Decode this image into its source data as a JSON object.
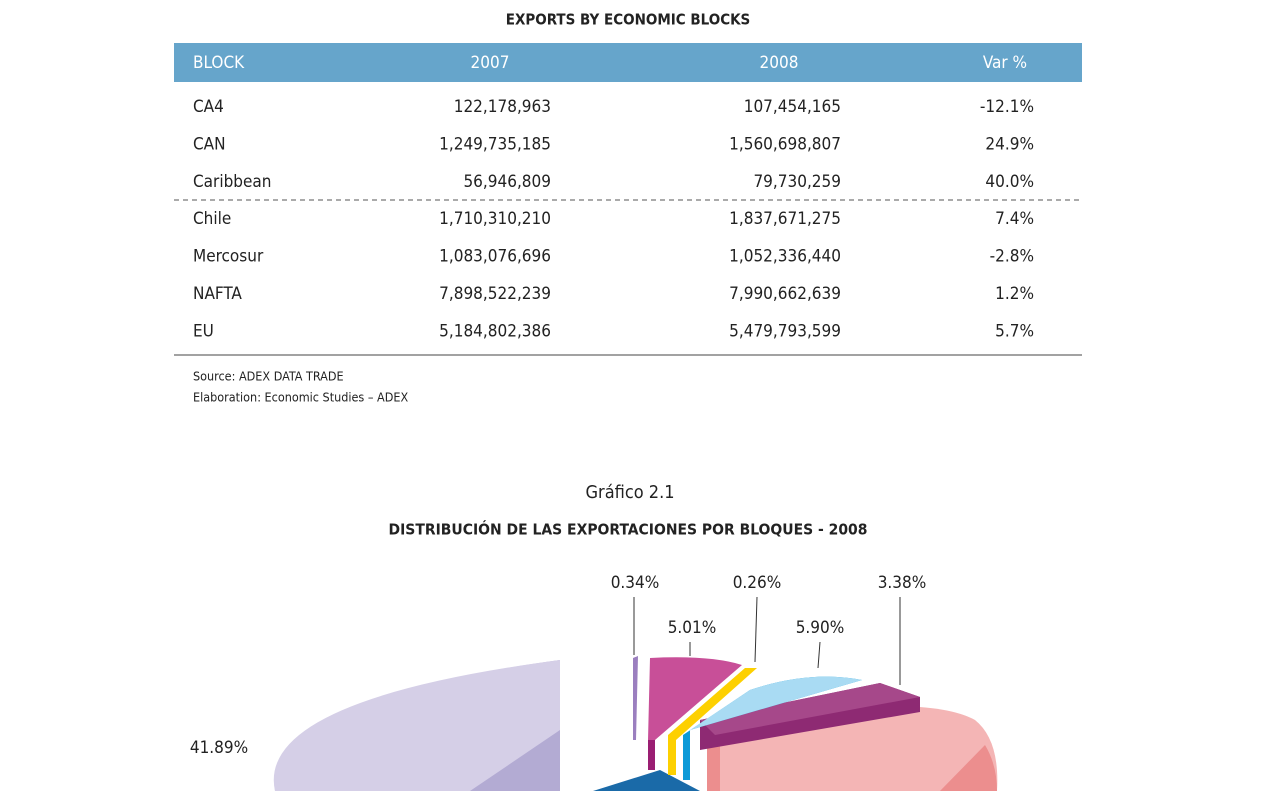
{
  "table": {
    "title": "EXPORTS BY ECONOMIC BLOCKS",
    "header": [
      "BLOCK",
      "2007",
      "2008",
      "Var %"
    ],
    "rows": [
      [
        "CA4",
        "122,178,963",
        "107,454,165",
        "-12.1%"
      ],
      [
        "CAN",
        "1,249,735,185",
        "1,560,698,807",
        "24.9%"
      ],
      [
        "Caribbean",
        "56,946,809",
        "79,730,259",
        "40.0%"
      ],
      [
        "Chile",
        "1,710,310,210",
        "1,837,671,275",
        "7.4%"
      ],
      [
        "Mercosur",
        "1,083,076,696",
        "1,052,336,440",
        "-2.8%"
      ],
      [
        "NAFTA",
        "7,898,522,239",
        "7,990,662,639",
        "1.2%"
      ],
      [
        "EU",
        "5,184,802,386",
        "5,479,793,599",
        "5.7%"
      ]
    ],
    "source": "Source: ADEX DATA TRADE",
    "elaboration": "Elaboration: Economic Studies – ADEX"
  },
  "chart": {
    "caption": "Gráfico 2.1",
    "title": "DISTRIBUCIÓN DE LAS EXPORTACIONES POR BLOQUES - 2008",
    "labels": [
      "0.34%",
      "0.26%",
      "3.38%",
      "5.01%",
      "5.90%",
      "41.89%"
    ]
  }
}
